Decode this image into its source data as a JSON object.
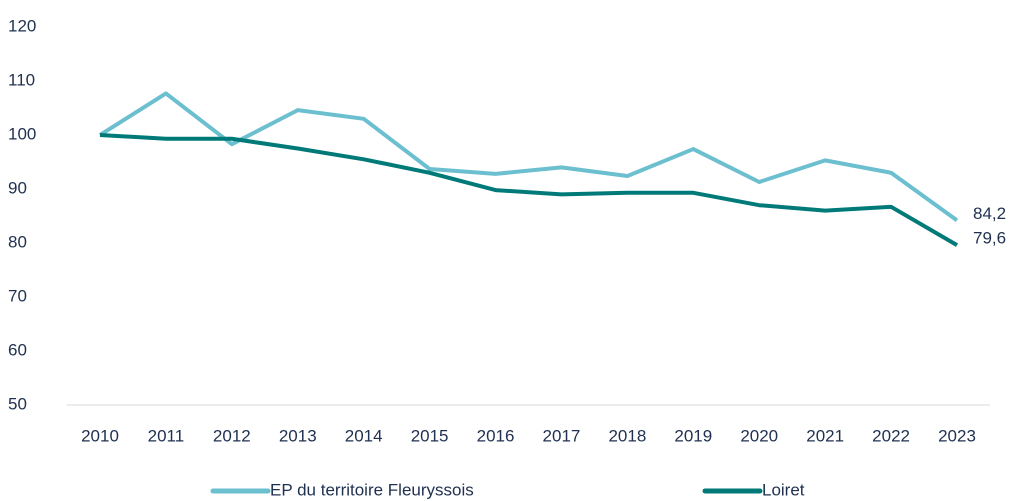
{
  "chart_data": {
    "type": "line",
    "x": [
      "2010",
      "2011",
      "2012",
      "2013",
      "2014",
      "2015",
      "2016",
      "2017",
      "2018",
      "2019",
      "2020",
      "2021",
      "2022",
      "2023"
    ],
    "series": [
      {
        "name": "EP du territoire Fleuryssois",
        "color": "#6bbfcf",
        "values": [
          100,
          107.7,
          98.3,
          104.6,
          103,
          93.7,
          92.8,
          94,
          92.4,
          97.4,
          91.3,
          95.3,
          93,
          84.2
        ],
        "value_labels": [
          null,
          null,
          null,
          null,
          null,
          null,
          null,
          null,
          null,
          null,
          null,
          null,
          null,
          "84,2"
        ]
      },
      {
        "name": "Loiret",
        "color": "#007a78",
        "values": [
          100,
          99.3,
          99.3,
          97.5,
          95.5,
          93,
          89.8,
          89,
          89.3,
          89.3,
          87,
          86,
          86.7,
          79.6
        ],
        "value_labels": [
          null,
          null,
          null,
          null,
          null,
          null,
          null,
          null,
          null,
          null,
          null,
          null,
          null,
          "79,6"
        ]
      }
    ],
    "ylim": [
      50,
      120
    ],
    "yticks": [
      50,
      60,
      70,
      80,
      90,
      100,
      110,
      120
    ],
    "grid": false,
    "legend": "bottom"
  }
}
